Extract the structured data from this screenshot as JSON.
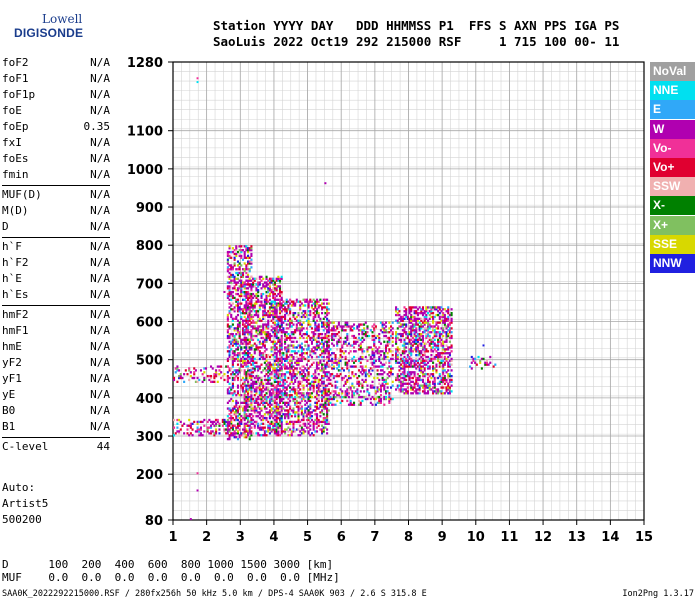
{
  "logo": {
    "line1": "Lowell",
    "line2": "DIGISONDE"
  },
  "header": {
    "line1": "Station YYYY DAY   DDD HHMMSS P1  FFS S AXN PPS IGA PS",
    "line2": "SaoLuis 2022 Oct19 292 215000 RSF     1 715 100 00- 11"
  },
  "params": [
    {
      "name": "foF2",
      "value": "N/A"
    },
    {
      "name": "foF1",
      "value": "N/A"
    },
    {
      "name": "foF1p",
      "value": "N/A"
    },
    {
      "name": "foE",
      "value": "N/A"
    },
    {
      "name": "foEp",
      "value": "0.35"
    },
    {
      "name": "fxI",
      "value": "N/A"
    },
    {
      "name": "foEs",
      "value": "N/A"
    },
    {
      "name": "fmin",
      "value": "N/A"
    },
    {
      "name": "MUF(D)",
      "value": "N/A"
    },
    {
      "name": "M(D)",
      "value": "N/A"
    },
    {
      "name": "D",
      "value": "N/A"
    },
    {
      "name": "h`F",
      "value": "N/A"
    },
    {
      "name": "h`F2",
      "value": "N/A"
    },
    {
      "name": "h`E",
      "value": "N/A"
    },
    {
      "name": "h`Es",
      "value": "N/A"
    },
    {
      "name": "hmF2",
      "value": "N/A"
    },
    {
      "name": "hmF1",
      "value": "N/A"
    },
    {
      "name": "hmE",
      "value": "N/A"
    },
    {
      "name": "yF2",
      "value": "N/A"
    },
    {
      "name": "yF1",
      "value": "N/A"
    },
    {
      "name": "yE",
      "value": "N/A"
    },
    {
      "name": "B0",
      "value": "N/A"
    },
    {
      "name": "B1",
      "value": "N/A"
    },
    {
      "name": "C-level",
      "value": "44"
    }
  ],
  "auto": {
    "line1": "Auto:",
    "line2": "Artist5",
    "line3": "500200"
  },
  "legend": [
    {
      "label": "NoVal",
      "color": "#a0a0a0"
    },
    {
      "label": "NNE",
      "color": "#00e0f0"
    },
    {
      "label": "E",
      "color": "#30a8f8"
    },
    {
      "label": "W",
      "color": "#b000b0"
    },
    {
      "label": "Vo-",
      "color": "#f03098"
    },
    {
      "label": "Vo+",
      "color": "#e00030"
    },
    {
      "label": "SSW",
      "color": "#f0b0b0"
    },
    {
      "label": "X-",
      "color": "#008000"
    },
    {
      "label": "X+",
      "color": "#80c060"
    },
    {
      "label": "SSE",
      "color": "#d8d800"
    },
    {
      "label": "NNW",
      "color": "#2020e0"
    }
  ],
  "bottom": {
    "d_label": "D",
    "d_values": "100  200  400  600  800 1000 1500 3000 [km]",
    "muf_label": "MUF",
    "muf_values": "0.0  0.0  0.0  0.0  0.0  0.0  0.0  0.0 [MHz]"
  },
  "footer": "SAA0K_2022292215000.RSF / 280fx256h 50 kHz 5.0 km / DPS-4 SAA0K 903 / 2.6 S 315.8 E",
  "version": "Ion2Png 1.3.17",
  "chart_data": {
    "type": "scatter",
    "x_ticks": [
      1,
      2,
      3,
      4,
      5,
      6,
      7,
      8,
      9,
      10,
      11,
      12,
      13,
      14,
      15
    ],
    "y_ticks": [
      80,
      200,
      300,
      400,
      500,
      600,
      700,
      800,
      900,
      1000,
      1100,
      1280
    ],
    "xlim": [
      1,
      15
    ],
    "ylim": [
      80,
      1280
    ],
    "grid": true,
    "legend_position": "right",
    "regions": [
      {
        "x": [
          1.0,
          2.8
        ],
        "y": [
          300,
          345
        ],
        "density": 0.35
      },
      {
        "x": [
          1.0,
          2.6
        ],
        "y": [
          440,
          485
        ],
        "density": 0.3
      },
      {
        "x": [
          2.6,
          3.3
        ],
        "y": [
          290,
          800
        ],
        "density": 0.42
      },
      {
        "x": [
          3.1,
          4.2
        ],
        "y": [
          300,
          720
        ],
        "density": 0.5
      },
      {
        "x": [
          4.0,
          5.6
        ],
        "y": [
          300,
          660
        ],
        "density": 0.45
      },
      {
        "x": [
          5.4,
          6.6
        ],
        "y": [
          380,
          600
        ],
        "density": 0.35
      },
      {
        "x": [
          6.6,
          7.5
        ],
        "y": [
          380,
          600
        ],
        "density": 0.3
      },
      {
        "x": [
          7.6,
          9.3
        ],
        "y": [
          410,
          640
        ],
        "density": 0.55
      },
      {
        "x": [
          9.8,
          10.6
        ],
        "y": [
          475,
          510
        ],
        "density": 0.25
      }
    ],
    "points": [
      {
        "x": 1.7,
        "y": 1240
      },
      {
        "x": 1.7,
        "y": 1230
      },
      {
        "x": 1.7,
        "y": 205
      },
      {
        "x": 1.7,
        "y": 160
      },
      {
        "x": 1.5,
        "y": 85
      },
      {
        "x": 5.5,
        "y": 965
      },
      {
        "x": 10.2,
        "y": 540
      },
      {
        "x": 2.5,
        "y": 680
      }
    ]
  }
}
